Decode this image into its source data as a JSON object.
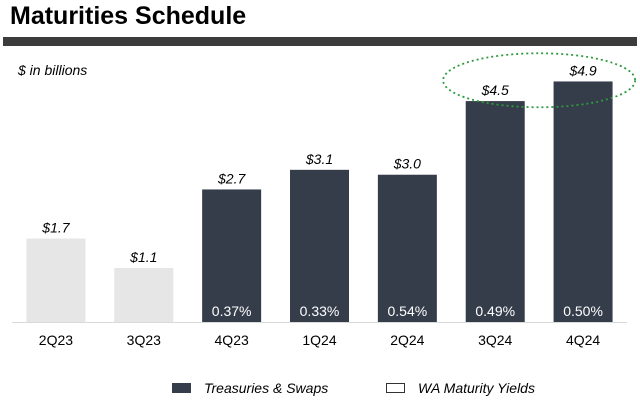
{
  "header": {
    "title": "Maturities Schedule"
  },
  "chart_data": {
    "type": "bar",
    "unit_label": "$ in billions",
    "categories": [
      "2Q23",
      "3Q23",
      "4Q23",
      "1Q24",
      "2Q24",
      "3Q24",
      "4Q24"
    ],
    "values": [
      1.7,
      1.1,
      2.7,
      3.1,
      3.0,
      4.5,
      4.9
    ],
    "value_labels": [
      "$1.7",
      "$1.1",
      "$2.7",
      "$3.1",
      "$3.0",
      "$4.5",
      "$4.9"
    ],
    "yields": [
      "",
      "",
      "0.37%",
      "0.33%",
      "0.54%",
      "0.49%",
      "0.50%"
    ],
    "bar_series": [
      "historical",
      "historical",
      "treasuries",
      "treasuries",
      "treasuries",
      "treasuries",
      "treasuries"
    ],
    "ylim": [
      0,
      5.5
    ],
    "highlighted_categories": [
      "3Q24",
      "4Q24"
    ],
    "legend": {
      "position": "bottom",
      "entries": [
        {
          "label": "Treasuries & Swaps",
          "color": "#353c4a",
          "style": "filled"
        },
        {
          "label": "WA Maturity Yields",
          "color": "#ffffff",
          "style": "outline"
        }
      ]
    },
    "colors": {
      "treasuries": "#353c4a",
      "historical": "#e6e6e6",
      "highlight": "#2e9b3e",
      "yield_text": "#ffffff",
      "title_rule": "#3c3c3c"
    }
  }
}
